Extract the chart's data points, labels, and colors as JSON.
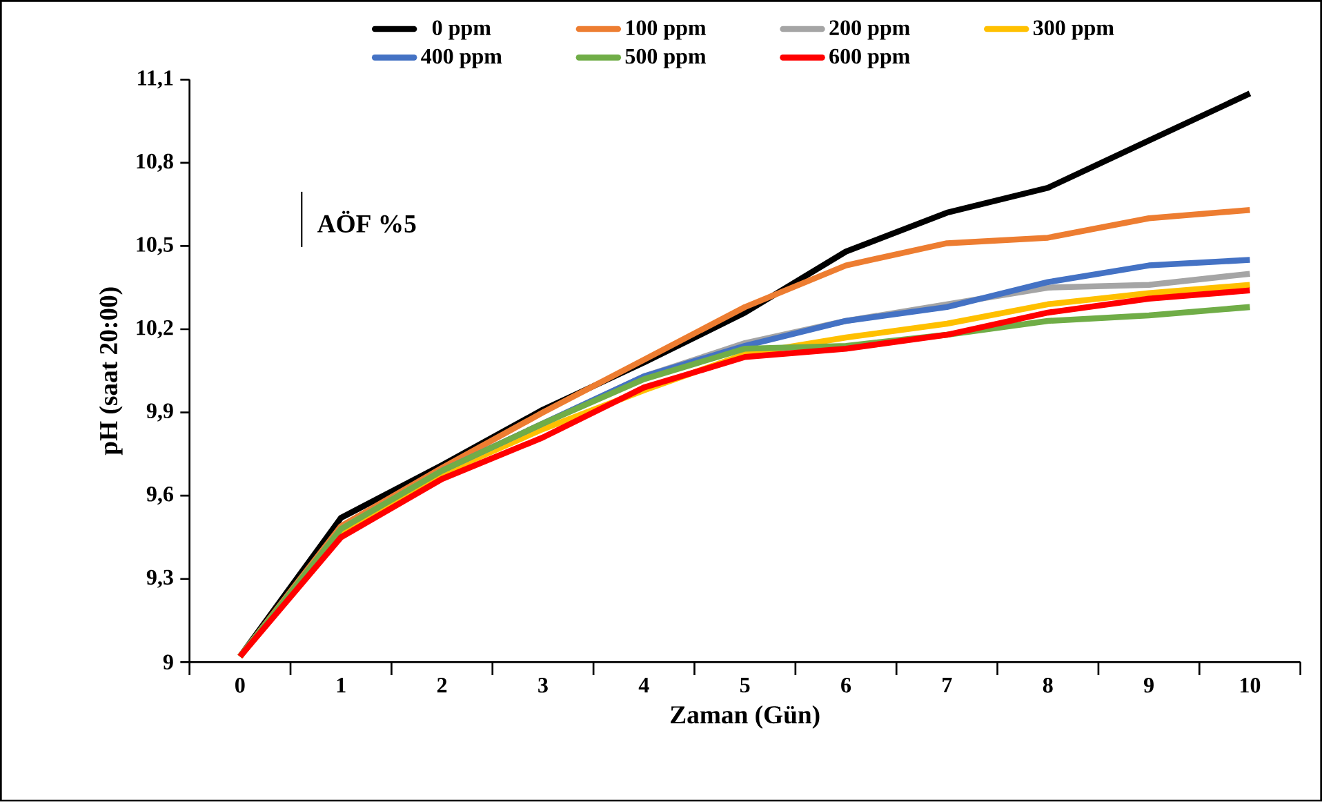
{
  "chart_data": {
    "type": "line",
    "xlabel": "Zaman (Gün)",
    "ylabel": "pH (saat 20:00)",
    "categories": [
      "0",
      "1",
      "2",
      "3",
      "4",
      "5",
      "6",
      "7",
      "8",
      "9",
      "10"
    ],
    "series": [
      {
        "name": "0 ppm",
        "color": "#000000",
        "values": [
          9.02,
          9.52,
          9.71,
          9.91,
          10.08,
          10.26,
          10.48,
          10.62,
          10.71,
          10.88,
          11.05
        ]
      },
      {
        "name": "100 ppm",
        "color": "#ed7d31",
        "values": [
          9.02,
          9.49,
          9.7,
          9.9,
          10.09,
          10.28,
          10.43,
          10.51,
          10.53,
          10.6,
          10.63
        ]
      },
      {
        "name": "200 ppm",
        "color": "#a5a5a5",
        "values": [
          9.02,
          9.48,
          9.69,
          9.86,
          10.03,
          10.15,
          10.23,
          10.29,
          10.35,
          10.36,
          10.4
        ]
      },
      {
        "name": "300 ppm",
        "color": "#ffc000",
        "values": [
          9.02,
          9.47,
          9.68,
          9.84,
          9.98,
          10.11,
          10.17,
          10.22,
          10.29,
          10.33,
          10.36
        ]
      },
      {
        "name": "400 ppm",
        "color": "#4472c4",
        "values": [
          null,
          null,
          9.69,
          9.86,
          10.03,
          10.14,
          10.23,
          10.28,
          10.37,
          10.43,
          10.45
        ]
      },
      {
        "name": "500 ppm",
        "color": "#70ad47",
        "values": [
          9.02,
          9.48,
          9.69,
          9.86,
          10.02,
          10.13,
          10.14,
          10.18,
          10.23,
          10.25,
          10.28
        ]
      },
      {
        "name": "600 ppm",
        "color": "#ff0000",
        "values": [
          9.02,
          9.45,
          9.66,
          9.81,
          9.99,
          10.1,
          10.13,
          10.18,
          10.26,
          10.31,
          10.34
        ]
      }
    ],
    "ylim": [
      9,
      11.1
    ],
    "yticks": [
      9,
      {
        "value": 9.3,
        "label": "9,3"
      },
      {
        "value": 9.6,
        "label": "9,6"
      },
      {
        "value": 9.9,
        "label": "9,9"
      },
      {
        "value": 10.2,
        "label": "10,2"
      },
      {
        "value": 10.5,
        "label": "10,5"
      },
      {
        "value": 10.8,
        "label": "10,8"
      },
      {
        "value": 11.1,
        "label": "11,1"
      }
    ],
    "annotations": [
      "AÖF %5"
    ],
    "legend": "top",
    "grid": false,
    "marker": "none",
    "line_style": "solid"
  }
}
